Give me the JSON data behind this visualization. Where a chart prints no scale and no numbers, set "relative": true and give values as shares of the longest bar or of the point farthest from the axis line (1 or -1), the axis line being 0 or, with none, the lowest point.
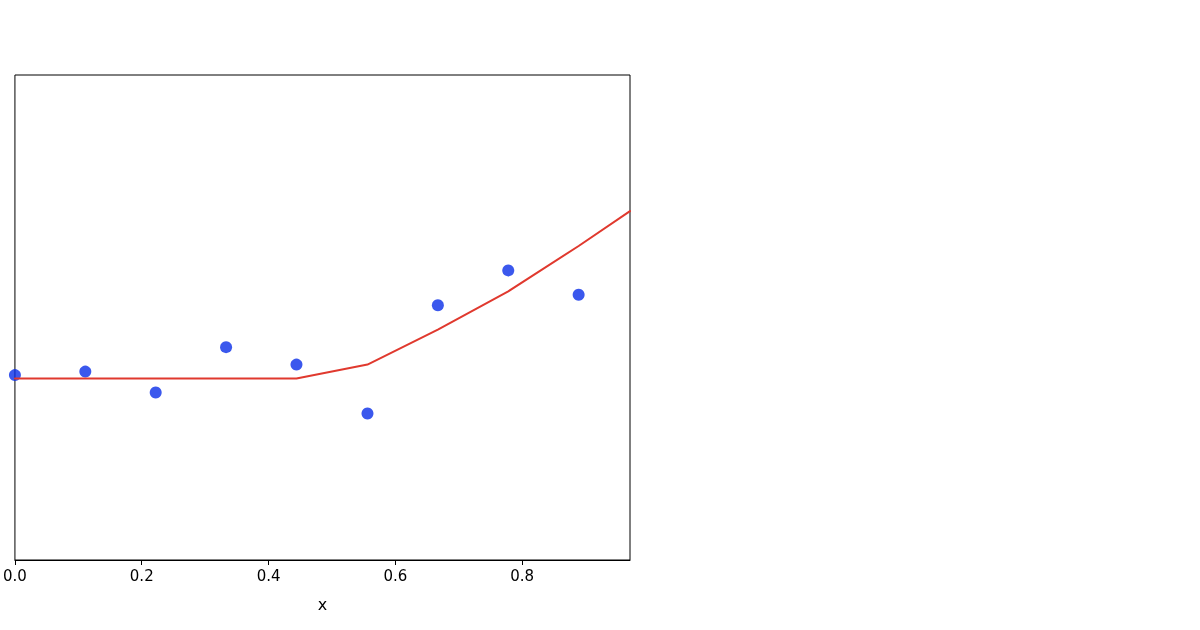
{
  "chart_data": {
    "type": "scatter",
    "xlabel": "x",
    "relative": true,
    "xlim": [
      0,
      0.97
    ],
    "xticks": [
      {
        "value": 0,
        "label": "0.0"
      },
      0.2,
      0.4,
      0.6,
      0.8
    ],
    "grid": false,
    "series": [
      {
        "color": "#0a2ee8",
        "marker": "circle",
        "x": [
          0,
          0.111,
          0.222,
          0.333,
          0.444,
          0.556,
          0.667,
          0.778,
          0.889
        ],
        "values": [
          0.53,
          0.54,
          0.48,
          0.61,
          0.56,
          0.42,
          0.73,
          0.83,
          0.76
        ]
      },
      {
        "type": "line",
        "color": "#e0392e",
        "marker": "none",
        "line_style": "solid",
        "x": [
          0,
          0.444,
          0.556,
          0.667,
          0.778,
          0.889,
          0.97
        ],
        "values": [
          0.52,
          0.52,
          0.56,
          0.66,
          0.77,
          0.9,
          1
        ]
      }
    ]
  }
}
